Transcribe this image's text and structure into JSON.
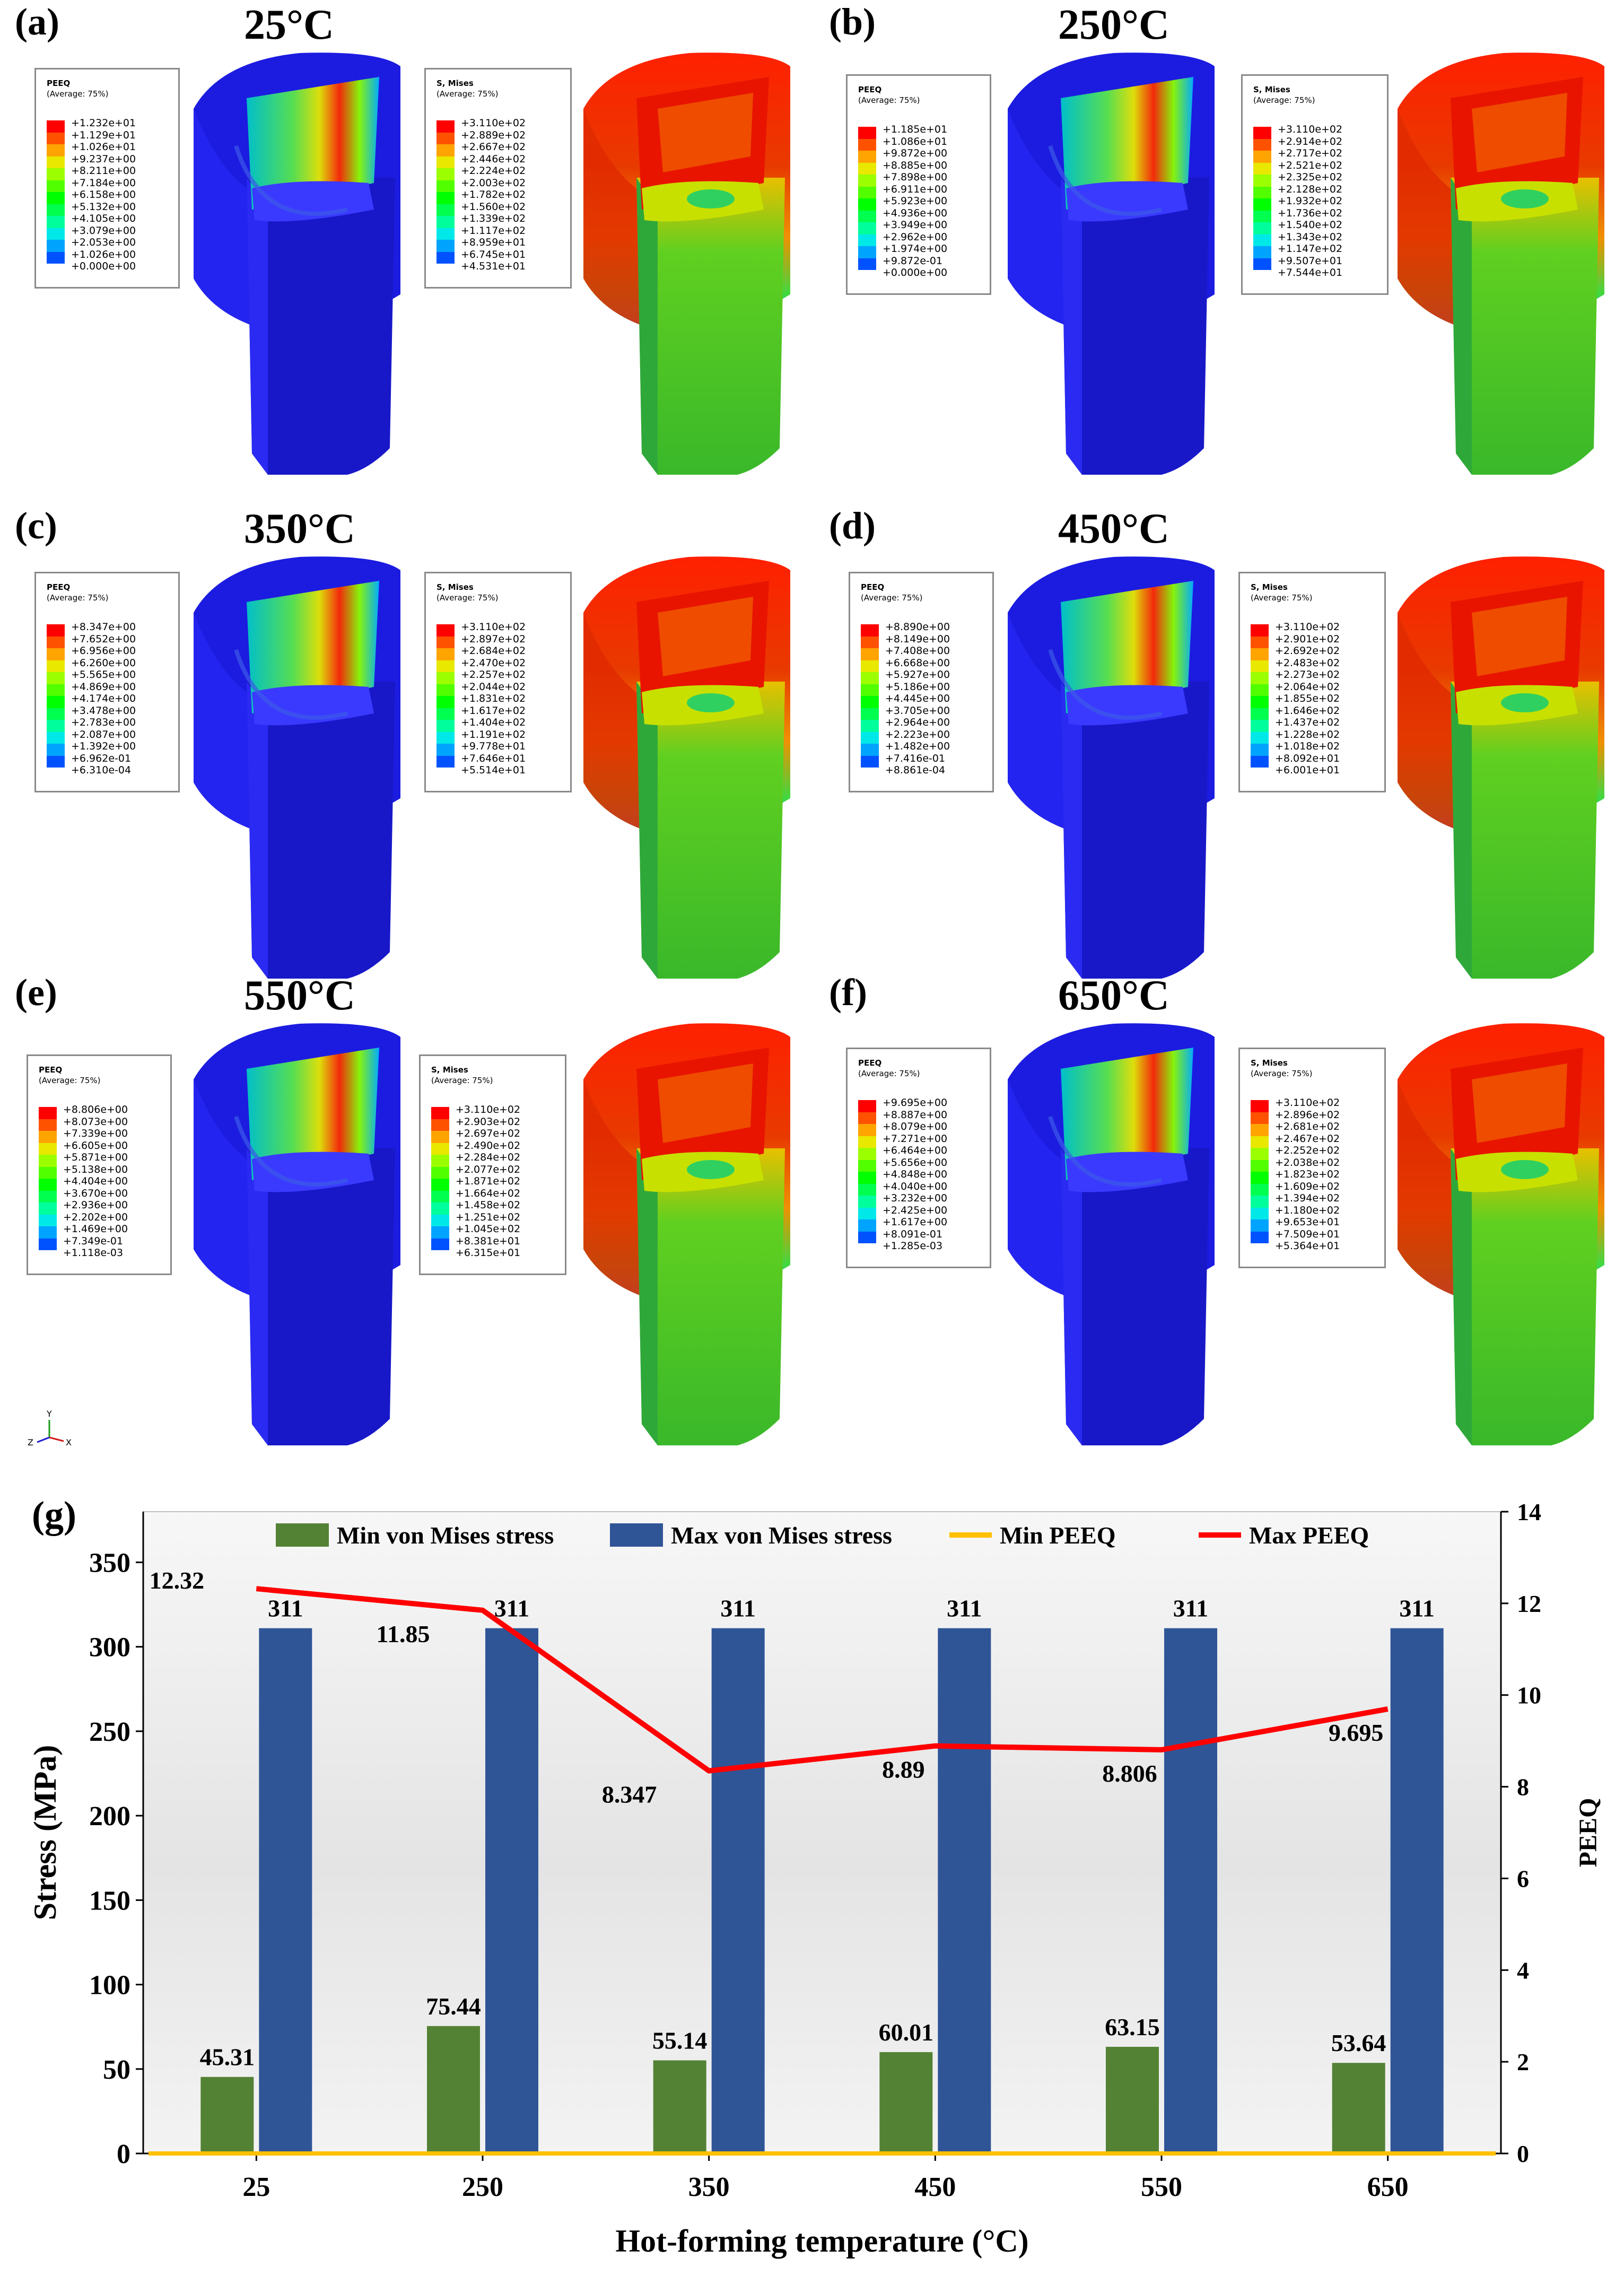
{
  "colors": {
    "contour": [
      "#0000ff",
      "#0052ff",
      "#00a4ff",
      "#00e8e8",
      "#00ff9c",
      "#00ff4e",
      "#00ff00",
      "#52ff00",
      "#9cff00",
      "#e8e800",
      "#ffa400",
      "#ff5200",
      "#ff0000"
    ],
    "peeq_model_blue": "#1515d9",
    "green_bar": "#548235",
    "blue_bar": "#2f5597",
    "min_peeq_line": "#ffc000",
    "max_peeq_line": "#ff0000"
  },
  "panels": [
    {
      "label": "(a)",
      "temp": "25°C",
      "peeq": {
        "title1": "PEEQ",
        "title2": "(Average: 75%)",
        "values": [
          "+1.232e+01",
          "+1.129e+01",
          "+1.026e+01",
          "+9.237e+00",
          "+8.211e+00",
          "+7.184e+00",
          "+6.158e+00",
          "+5.132e+00",
          "+4.105e+00",
          "+3.079e+00",
          "+2.053e+00",
          "+1.026e+00",
          "+0.000e+00"
        ]
      },
      "mises": {
        "title1": "S, Mises",
        "title2": "(Average: 75%)",
        "values": [
          "+3.110e+02",
          "+2.889e+02",
          "+2.667e+02",
          "+2.446e+02",
          "+2.224e+02",
          "+2.003e+02",
          "+1.782e+02",
          "+1.560e+02",
          "+1.339e+02",
          "+1.117e+02",
          "+8.959e+01",
          "+6.745e+01",
          "+4.531e+01"
        ]
      }
    },
    {
      "label": "(b)",
      "temp": "250°C",
      "peeq": {
        "title1": "PEEQ",
        "title2": "(Average: 75%)",
        "values": [
          "+1.185e+01",
          "+1.086e+01",
          "+9.872e+00",
          "+8.885e+00",
          "+7.898e+00",
          "+6.911e+00",
          "+5.923e+00",
          "+4.936e+00",
          "+3.949e+00",
          "+2.962e+00",
          "+1.974e+00",
          "+9.872e-01",
          "+0.000e+00"
        ]
      },
      "mises": {
        "title1": "S, Mises",
        "title2": "(Average: 75%)",
        "values": [
          "+3.110e+02",
          "+2.914e+02",
          "+2.717e+02",
          "+2.521e+02",
          "+2.325e+02",
          "+2.128e+02",
          "+1.932e+02",
          "+1.736e+02",
          "+1.540e+02",
          "+1.343e+02",
          "+1.147e+02",
          "+9.507e+01",
          "+7.544e+01"
        ]
      }
    },
    {
      "label": "(c)",
      "temp": "350°C",
      "peeq": {
        "title1": "PEEQ",
        "title2": "(Average: 75%)",
        "values": [
          "+8.347e+00",
          "+7.652e+00",
          "+6.956e+00",
          "+6.260e+00",
          "+5.565e+00",
          "+4.869e+00",
          "+4.174e+00",
          "+3.478e+00",
          "+2.783e+00",
          "+2.087e+00",
          "+1.392e+00",
          "+6.962e-01",
          "+6.310e-04"
        ]
      },
      "mises": {
        "title1": "S, Mises",
        "title2": "(Average: 75%)",
        "values": [
          "+3.110e+02",
          "+2.897e+02",
          "+2.684e+02",
          "+2.470e+02",
          "+2.257e+02",
          "+2.044e+02",
          "+1.831e+02",
          "+1.617e+02",
          "+1.404e+02",
          "+1.191e+02",
          "+9.778e+01",
          "+7.646e+01",
          "+5.514e+01"
        ]
      }
    },
    {
      "label": "(d)",
      "temp": "450°C",
      "peeq": {
        "title1": "PEEQ",
        "title2": "(Average: 75%)",
        "values": [
          "+8.890e+00",
          "+8.149e+00",
          "+7.408e+00",
          "+6.668e+00",
          "+5.927e+00",
          "+5.186e+00",
          "+4.445e+00",
          "+3.705e+00",
          "+2.964e+00",
          "+2.223e+00",
          "+1.482e+00",
          "+7.416e-01",
          "+8.861e-04"
        ]
      },
      "mises": {
        "title1": "S, Mises",
        "title2": "(Average: 75%)",
        "values": [
          "+3.110e+02",
          "+2.901e+02",
          "+2.692e+02",
          "+2.483e+02",
          "+2.273e+02",
          "+2.064e+02",
          "+1.855e+02",
          "+1.646e+02",
          "+1.437e+02",
          "+1.228e+02",
          "+1.018e+02",
          "+8.092e+01",
          "+6.001e+01"
        ]
      }
    },
    {
      "label": "(e)",
      "temp": "550°C",
      "peeq": {
        "title1": "PEEQ",
        "title2": "(Average: 75%)",
        "values": [
          "+8.806e+00",
          "+8.073e+00",
          "+7.339e+00",
          "+6.605e+00",
          "+5.871e+00",
          "+5.138e+00",
          "+4.404e+00",
          "+3.670e+00",
          "+2.936e+00",
          "+2.202e+00",
          "+1.469e+00",
          "+7.349e-01",
          "+1.118e-03"
        ]
      },
      "mises": {
        "title1": "S, Mises",
        "title2": "(Average: 75%)",
        "values": [
          "+3.110e+02",
          "+2.903e+02",
          "+2.697e+02",
          "+2.490e+02",
          "+2.284e+02",
          "+2.077e+02",
          "+1.871e+02",
          "+1.664e+02",
          "+1.458e+02",
          "+1.251e+02",
          "+1.045e+02",
          "+8.381e+01",
          "+6.315e+01"
        ]
      }
    },
    {
      "label": "(f)",
      "temp": "650°C",
      "peeq": {
        "title1": "PEEQ",
        "title2": "(Average: 75%)",
        "values": [
          "+9.695e+00",
          "+8.887e+00",
          "+8.079e+00",
          "+7.271e+00",
          "+6.464e+00",
          "+5.656e+00",
          "+4.848e+00",
          "+4.040e+00",
          "+3.232e+00",
          "+2.425e+00",
          "+1.617e+00",
          "+8.091e-01",
          "+1.285e-03"
        ]
      },
      "mises": {
        "title1": "S, Mises",
        "title2": "(Average: 75%)",
        "values": [
          "+3.110e+02",
          "+2.896e+02",
          "+2.681e+02",
          "+2.467e+02",
          "+2.252e+02",
          "+2.038e+02",
          "+1.823e+02",
          "+1.609e+02",
          "+1.394e+02",
          "+1.180e+02",
          "+9.653e+01",
          "+7.509e+01",
          "+5.364e+01"
        ]
      }
    }
  ],
  "axis_triad": {
    "y": "Y",
    "z": "Z",
    "x": "X"
  },
  "chart_data": {
    "type": "bar",
    "panel_label": "(g)",
    "categories": [
      "25",
      "250",
      "350",
      "450",
      "550",
      "650"
    ],
    "xlabel": "Hot-forming temperature (°C)",
    "ylabel": "Stress (MPa)",
    "y2label": "PEEQ",
    "ylim": [
      0,
      380
    ],
    "y2lim": [
      0,
      14
    ],
    "yticks": [
      0,
      50,
      100,
      150,
      200,
      250,
      300,
      350
    ],
    "y2ticks": [
      0,
      2,
      4,
      6,
      8,
      10,
      12,
      14
    ],
    "legend_position": "top",
    "series": [
      {
        "name": "Min von Mises stress",
        "type": "bar",
        "axis": "left",
        "values": [
          45.31,
          75.44,
          55.14,
          60.01,
          63.15,
          53.64
        ],
        "labels": [
          "45.31",
          "75.44",
          "55.14",
          "60.01",
          "63.15",
          "53.64"
        ]
      },
      {
        "name": "Max von Mises stress",
        "type": "bar",
        "axis": "left",
        "values": [
          311,
          311,
          311,
          311,
          311,
          311
        ],
        "labels": [
          "311",
          "311",
          "311",
          "311",
          "311",
          "311"
        ]
      },
      {
        "name": "Min PEEQ",
        "type": "line",
        "axis": "right",
        "values": [
          0,
          0,
          0.00063,
          0.00089,
          0.00112,
          0.00129
        ]
      },
      {
        "name": "Max PEEQ",
        "type": "line",
        "axis": "right",
        "values": [
          12.32,
          11.85,
          8.347,
          8.89,
          8.806,
          9.695
        ],
        "labels": [
          "12.32",
          "11.85",
          "8.347",
          "8.89",
          "8.806",
          "9.695"
        ]
      }
    ]
  }
}
